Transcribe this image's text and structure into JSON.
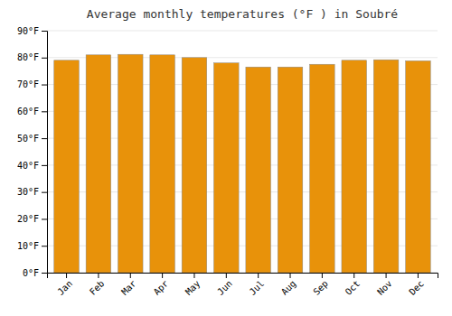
{
  "chart_data": {
    "type": "bar",
    "title": "Average monthly temperatures (°F ) in Soubré",
    "categories": [
      "Jan",
      "Feb",
      "Mar",
      "Apr",
      "May",
      "Jun",
      "Jul",
      "Aug",
      "Sep",
      "Oct",
      "Nov",
      "Dec"
    ],
    "values": [
      79.0,
      81.0,
      81.2,
      81.0,
      80.0,
      78.0,
      76.5,
      76.5,
      77.5,
      79.0,
      79.2,
      78.8
    ],
    "color": "#E8920A",
    "ylim": [
      0,
      90
    ],
    "yticks": [
      {
        "value": 0,
        "label": "0°F"
      },
      {
        "value": 10,
        "label": "10°F"
      },
      {
        "value": 20,
        "label": "20°F"
      },
      {
        "value": 30,
        "label": "30°F"
      },
      {
        "value": 40,
        "label": "40°F"
      },
      {
        "value": 50,
        "label": "50°F"
      },
      {
        "value": 60,
        "label": "60°F"
      },
      {
        "value": 70,
        "label": "70°F"
      },
      {
        "value": 80,
        "label": "80°F"
      },
      {
        "value": 90,
        "label": "90°F"
      }
    ],
    "grid": true
  }
}
